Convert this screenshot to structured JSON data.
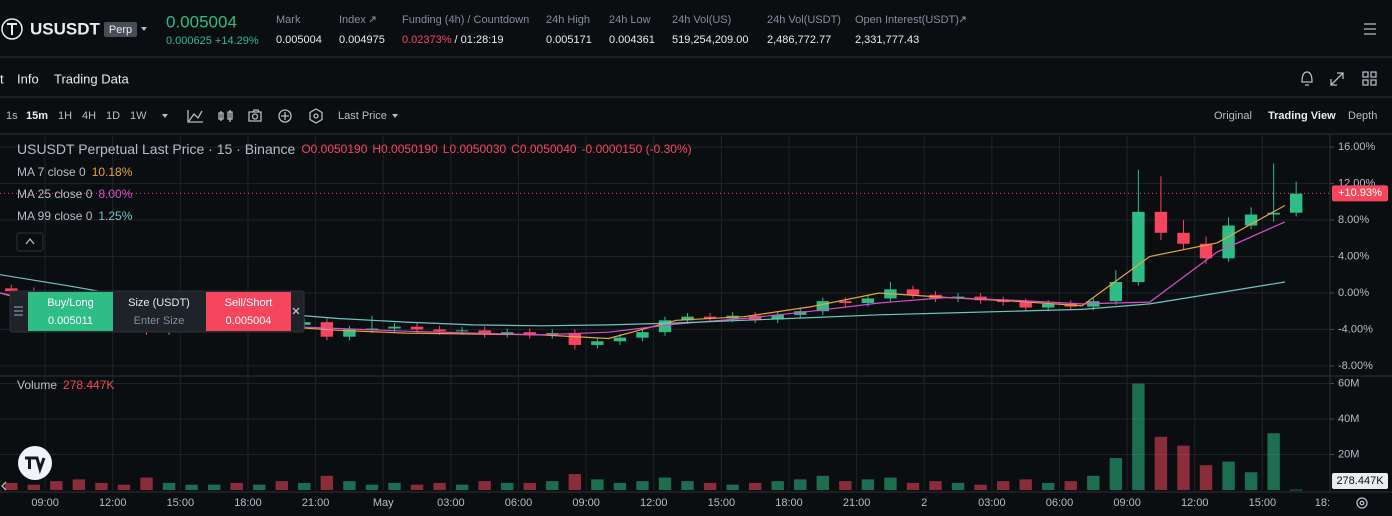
{
  "header": {
    "symbol": "USUSDT",
    "badge": "Perp",
    "last_price": "0.005004",
    "change": "0.000625 +14.29%",
    "stats": [
      {
        "label": "Mark",
        "value": "0.005004"
      },
      {
        "label": "Index",
        "value": "0.004975"
      },
      {
        "label": "Funding (4h) / Countdown",
        "value": "0.02373%",
        "countdown": "/ 01:28:19"
      },
      {
        "label": "24h High",
        "value": "0.005171"
      },
      {
        "label": "24h Low",
        "value": "0.004361"
      },
      {
        "label": "24h Vol(US)",
        "value": "519,254,209.00"
      },
      {
        "label": "24h Vol(USDT)",
        "value": "2,486,772.77"
      },
      {
        "label": "Open Interest(USDT)",
        "value": "2,331,777.43"
      }
    ]
  },
  "tabs": [
    "t",
    "Info",
    "Trading Data"
  ],
  "toolbar": {
    "intervals": [
      "1s",
      "15m",
      "1H",
      "4H",
      "1D",
      "1W"
    ],
    "price_source": "Last Price",
    "views": [
      "Original",
      "Trading View",
      "Depth"
    ]
  },
  "trade_panel": {
    "buy_label": "Buy/Long",
    "buy_price": "0.005011",
    "size_label": "Size (USDT)",
    "size_placeholder": "Enter Size",
    "sell_label": "Sell/Short",
    "sell_price": "0.005004"
  },
  "chart_data": [
    {
      "type": "candlestick",
      "title": "USUSDT Perpetual Last Price · 15 · Binance",
      "ohlc": [
        "O0.0050190",
        "H0.0050190",
        "L0.0050030",
        "C0.0050040",
        "-0.0000150 (-0.30%)"
      ],
      "up_color": "#2ebd85",
      "down_color": "#f6465d",
      "x": [
        0.5,
        1.5,
        2.5,
        3.5,
        4.5,
        5.5,
        6.5,
        7.5,
        8.5,
        9.5,
        10.5,
        11.5,
        12.5,
        13.5,
        14.5,
        15.5,
        16.5,
        17.5,
        18.5,
        19.5,
        20.5,
        21.5,
        22.5,
        23.5,
        24.5,
        25.5,
        26.5,
        27.5,
        28.5,
        29.5,
        30.5,
        31.5,
        32.5,
        33.5,
        34.5,
        35.5,
        36.5,
        37.5,
        38.5,
        39.5,
        40.5,
        41.5,
        42.5,
        43.5,
        44.5,
        45.5,
        46.5,
        47.5,
        48.5,
        49.5,
        50.5,
        51.5,
        52.5,
        53.5,
        54.5,
        55.5,
        56.5,
        57.5
      ],
      "open": [
        0.5,
        0.2,
        -0.3,
        -1.0,
        -1.8,
        -2.5,
        -3.2,
        -4.2,
        -3.8,
        -3.4,
        -3.1,
        -3.3,
        -3.0,
        -3.5,
        -3.2,
        -4.8,
        -4.0,
        -3.9,
        -3.7,
        -4.0,
        -4.2,
        -4.1,
        -4.5,
        -4.3,
        -4.6,
        -4.4,
        -5.7,
        -5.3,
        -4.9,
        -4.3,
        -3.0,
        -2.6,
        -2.8,
        -2.5,
        -2.9,
        -2.4,
        -2.0,
        -0.9,
        -1.1,
        -0.6,
        0.4,
        -0.2,
        -0.6,
        -0.4,
        -0.8,
        -1.0,
        -1.6,
        -1.2,
        -1.5,
        -0.9,
        1.2,
        8.9,
        6.6,
        5.4,
        3.8,
        7.4,
        8.6,
        8.8
      ],
      "high": [
        0.9,
        0.6,
        0.1,
        -0.6,
        -1.4,
        -2.1,
        -2.8,
        -3.4,
        -3.0,
        -2.7,
        -2.7,
        -2.6,
        -2.6,
        -2.8,
        -2.8,
        -3.6,
        -2.5,
        -3.3,
        -3.3,
        -3.6,
        -3.7,
        -3.7,
        -3.9,
        -3.9,
        -4.0,
        -4.0,
        -4.9,
        -4.5,
        -3.9,
        -2.6,
        -2.2,
        -2.2,
        -2.1,
        -2.1,
        -2.0,
        -1.6,
        -0.5,
        -0.5,
        -0.2,
        1.2,
        0.8,
        0.2,
        0.0,
        0.0,
        -0.4,
        -0.6,
        -0.8,
        -0.8,
        -0.5,
        2.5,
        13.5,
        12.8,
        8.0,
        6.2,
        8.3,
        9.4,
        14.2,
        12.2
      ],
      "low": [
        -0.2,
        -0.7,
        -1.4,
        -2.2,
        -2.9,
        -3.6,
        -4.6,
        -4.6,
        -4.2,
        -3.8,
        -3.7,
        -3.7,
        -3.9,
        -3.9,
        -5.2,
        -5.2,
        -4.4,
        -4.3,
        -4.4,
        -4.6,
        -4.6,
        -4.9,
        -4.9,
        -5.0,
        -5.0,
        -6.2,
        -6.1,
        -5.7,
        -5.3,
        -4.7,
        -3.4,
        -3.2,
        -3.2,
        -3.3,
        -3.3,
        -2.8,
        -2.4,
        -1.5,
        -1.5,
        -1.0,
        -0.6,
        -1.0,
        -1.0,
        -1.2,
        -1.4,
        -2.0,
        -2.0,
        -1.9,
        -1.9,
        -1.3,
        0.8,
        5.8,
        4.8,
        3.2,
        3.4,
        7.0,
        7.8,
        8.4
      ],
      "close": [
        0.2,
        -0.3,
        -1.0,
        -1.8,
        -2.5,
        -3.2,
        -4.2,
        -3.8,
        -3.4,
        -3.1,
        -3.3,
        -3.0,
        -3.5,
        -3.2,
        -4.8,
        -4.0,
        -3.9,
        -3.7,
        -4.0,
        -4.2,
        -4.1,
        -4.5,
        -4.3,
        -4.6,
        -4.4,
        -5.7,
        -5.3,
        -4.9,
        -4.3,
        -3.0,
        -2.6,
        -2.8,
        -2.5,
        -2.9,
        -2.4,
        -2.0,
        -0.9,
        -1.1,
        -0.6,
        0.4,
        -0.2,
        -0.6,
        -0.4,
        -0.8,
        -1.0,
        -1.6,
        -1.2,
        -1.5,
        -0.9,
        1.2,
        8.9,
        6.6,
        5.4,
        3.8,
        7.4,
        8.6,
        8.8,
        10.9
      ],
      "ma": [
        {
          "name": "MA 7 close 0",
          "color": "#e8a33d",
          "x": [
            0,
            3,
            6,
            9,
            12,
            15,
            18,
            21,
            24,
            27,
            30,
            33,
            36,
            39,
            42,
            45,
            48,
            51,
            54,
            57
          ],
          "values": [
            0.0,
            -2.0,
            -3.6,
            -3.3,
            -3.6,
            -4.1,
            -4.4,
            -4.5,
            -4.6,
            -5.0,
            -3.0,
            -2.6,
            -1.5,
            0.0,
            -0.5,
            -0.9,
            -1.4,
            4.0,
            5.5,
            9.6
          ],
          "last": {
            "value": 10.18,
            "label": "10.18%"
          }
        },
        {
          "name": "MA 25 close 0",
          "color": "#d64ec9",
          "x": [
            0,
            3,
            6,
            9,
            12,
            15,
            18,
            21,
            24,
            27,
            30,
            33,
            36,
            39,
            42,
            45,
            48,
            51,
            54,
            57
          ],
          "values": [
            0.0,
            -1.5,
            -2.8,
            -3.3,
            -3.6,
            -3.9,
            -4.2,
            -4.4,
            -4.6,
            -4.3,
            -3.4,
            -2.8,
            -2.0,
            -1.1,
            -0.5,
            -0.8,
            -1.2,
            -1.0,
            4.5,
            7.8
          ],
          "last": {
            "value": 8.0,
            "label": "8.00%"
          }
        },
        {
          "name": "MA 99 close 0",
          "color": "#6fc6c0",
          "x": [
            0,
            3,
            6,
            9,
            12,
            15,
            18,
            21,
            24,
            27,
            30,
            33,
            36,
            39,
            42,
            45,
            48,
            51,
            54,
            57
          ],
          "values": [
            2.0,
            0.8,
            -0.5,
            -1.5,
            -2.2,
            -2.8,
            -3.2,
            -3.5,
            -3.6,
            -3.5,
            -3.3,
            -3.0,
            -2.7,
            -2.4,
            -2.2,
            -2.0,
            -1.8,
            -1.2,
            0.0,
            1.2
          ],
          "last": {
            "value": 1.25,
            "label": "1.25%"
          }
        }
      ],
      "current": {
        "value": 10.93,
        "label": "+10.93%"
      },
      "xlim": [
        0,
        59
      ],
      "xticks": [
        {
          "value": 2,
          "label": "09:00"
        },
        {
          "value": 5,
          "label": "12:00"
        },
        {
          "value": 8,
          "label": "15:00"
        },
        {
          "value": 11,
          "label": "18:00"
        },
        {
          "value": 14,
          "label": "21:00"
        },
        {
          "value": 17,
          "label": "May"
        },
        {
          "value": 20,
          "label": "03:00"
        },
        {
          "value": 23,
          "label": "06:00"
        },
        {
          "value": 26,
          "label": "09:00"
        },
        {
          "value": 29,
          "label": "12:00"
        },
        {
          "value": 32,
          "label": "15:00"
        },
        {
          "value": 35,
          "label": "18:00"
        },
        {
          "value": 38,
          "label": "21:00"
        },
        {
          "value": 41,
          "label": "2"
        },
        {
          "value": 44,
          "label": "03:00"
        },
        {
          "value": 47,
          "label": "06:00"
        },
        {
          "value": 50,
          "label": "09:00"
        },
        {
          "value": 53,
          "label": "12:00"
        },
        {
          "value": 56,
          "label": "15:00"
        },
        {
          "value": 59,
          "label": "18:"
        }
      ],
      "ylim": [
        -9,
        17
      ],
      "yticks": [
        {
          "value": 16,
          "label": "16.00%"
        },
        {
          "value": 12,
          "label": "12.00%"
        },
        {
          "value": 8,
          "label": "8.00%"
        },
        {
          "value": 4,
          "label": "4.00%"
        },
        {
          "value": 0,
          "label": "0.00%"
        },
        {
          "value": -4,
          "label": "-4.00%"
        },
        {
          "value": -8,
          "label": "-8.00%"
        }
      ],
      "grid": true
    },
    {
      "type": "bar",
      "name": "Volume",
      "x": [
        0.5,
        1.5,
        2.5,
        3.5,
        4.5,
        5.5,
        6.5,
        7.5,
        8.5,
        9.5,
        10.5,
        11.5,
        12.5,
        13.5,
        14.5,
        15.5,
        16.5,
        17.5,
        18.5,
        19.5,
        20.5,
        21.5,
        22.5,
        23.5,
        24.5,
        25.5,
        26.5,
        27.5,
        28.5,
        29.5,
        30.5,
        31.5,
        32.5,
        33.5,
        34.5,
        35.5,
        36.5,
        37.5,
        38.5,
        39.5,
        40.5,
        41.5,
        42.5,
        43.5,
        44.5,
        45.5,
        46.5,
        47.5,
        48.5,
        49.5,
        50.5,
        51.5,
        52.5,
        53.5,
        54.5,
        55.5,
        56.5,
        57.5
      ],
      "values": [
        4,
        3,
        5,
        6,
        4,
        3,
        7,
        4,
        3,
        3,
        4,
        3,
        5,
        4,
        8,
        5,
        3,
        4,
        3,
        4,
        3,
        5,
        4,
        4,
        5,
        9,
        6,
        4,
        5,
        7,
        5,
        4,
        3,
        4,
        5,
        6,
        8,
        5,
        6,
        7,
        4,
        5,
        4,
        3,
        5,
        6,
        4,
        5,
        8,
        18,
        60,
        30,
        25,
        14,
        16,
        10,
        32,
        0.278447
      ],
      "current": {
        "value": 0.278447,
        "label": "278.447K"
      },
      "xlim": [
        0,
        59
      ],
      "ylim": [
        0,
        62
      ],
      "yticks": [
        {
          "value": 60,
          "label": "60M"
        },
        {
          "value": 40,
          "label": "40M"
        },
        {
          "value": 20,
          "label": "20M"
        }
      ],
      "grid": true
    }
  ]
}
